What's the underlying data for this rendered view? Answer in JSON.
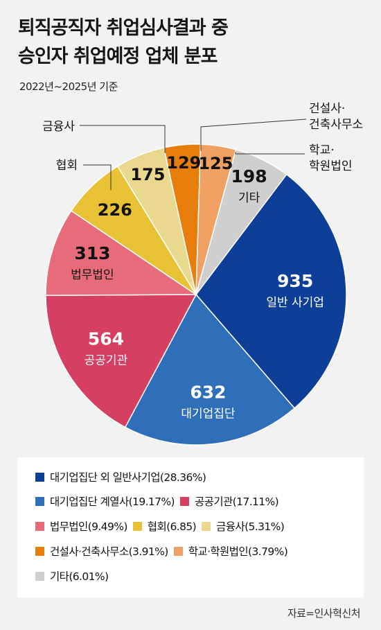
{
  "title_lines": [
    "퇴직공직자 취업심사결과 중",
    "승인자 취업예정 업체 분포"
  ],
  "subtitle": "2022년~2025년 기준",
  "source": "자료=인사혁신처",
  "chart_data": {
    "type": "pie",
    "title": "퇴직공직자 취업심사결과 중 승인자 취업예정 업체 분포",
    "subtitle": "2022년~2025년 기준",
    "legend_position": "bottom",
    "slices": [
      {
        "id": "general",
        "label": "일반 사기업",
        "legend": "대기업집단 외 일반사기업(28.36%)",
        "value": 935,
        "color": "#0d3f98",
        "inside_label": true
      },
      {
        "id": "conglomerate",
        "label": "대기업집단",
        "legend": "대기업집단 계열사(19.17%)",
        "value": 632,
        "color": "#2f6fba",
        "inside_label": true
      },
      {
        "id": "public",
        "label": "공공기관",
        "legend": "공공기관(17.11%)",
        "value": 564,
        "color": "#d53f62",
        "inside_label": true
      },
      {
        "id": "law",
        "label": "법무법인",
        "legend": "법무법인(9.49%)",
        "value": 313,
        "color": "#e86b79",
        "inside_label": true
      },
      {
        "id": "association",
        "label": "협회",
        "legend": "협회(6.85)",
        "value": 226,
        "color": "#e8c234",
        "inside_label": false
      },
      {
        "id": "finance",
        "label": "금융사",
        "legend": "금융사(5.31%)",
        "value": 175,
        "color": "#e9d88e",
        "inside_label": false
      },
      {
        "id": "construction",
        "label": "건설사·\n건축사무소",
        "legend": "건설사·건축사무소(3.91%)",
        "value": 129,
        "color": "#e77d0b",
        "inside_label": false
      },
      {
        "id": "school",
        "label": "학교·\n학원법인",
        "legend": "학교·학원법인(3.79%)",
        "value": 125,
        "color": "#f0a062",
        "inside_label": false
      },
      {
        "id": "other",
        "label": "기타",
        "legend": "기타(6.01%)",
        "value": 198,
        "color": "#cfcfcf",
        "inside_label": true
      }
    ]
  }
}
